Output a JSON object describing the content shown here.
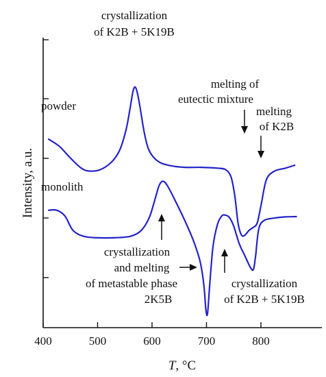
{
  "chart_data": {
    "type": "line",
    "xlabel_var": "T",
    "xlabel_unit": ", °C",
    "ylabel": "Intensity, a.u.",
    "xlim": [
      400,
      880
    ],
    "xticks": [
      "400",
      "500",
      "600",
      "700",
      "800"
    ],
    "grid": false,
    "colors": {
      "series": "#2222cc",
      "axis": "#111111"
    },
    "series": [
      {
        "name": "powder",
        "points": [
          [
            410,
            0.65
          ],
          [
            430,
            0.625
          ],
          [
            450,
            0.585
          ],
          [
            470,
            0.55
          ],
          [
            485,
            0.54
          ],
          [
            505,
            0.545
          ],
          [
            525,
            0.57
          ],
          [
            540,
            0.61
          ],
          [
            552,
            0.68
          ],
          [
            560,
            0.76
          ],
          [
            565,
            0.815
          ],
          [
            569,
            0.83
          ],
          [
            573,
            0.81
          ],
          [
            578,
            0.76
          ],
          [
            586,
            0.67
          ],
          [
            595,
            0.61
          ],
          [
            610,
            0.575
          ],
          [
            630,
            0.56
          ],
          [
            660,
            0.553
          ],
          [
            690,
            0.553
          ],
          [
            720,
            0.55
          ],
          [
            735,
            0.545
          ],
          [
            745,
            0.52
          ],
          [
            752,
            0.455
          ],
          [
            758,
            0.36
          ],
          [
            764,
            0.32
          ],
          [
            770,
            0.318
          ],
          [
            778,
            0.335
          ],
          [
            785,
            0.345
          ],
          [
            793,
            0.36
          ],
          [
            800,
            0.42
          ],
          [
            810,
            0.51
          ],
          [
            825,
            0.54
          ],
          [
            845,
            0.55
          ],
          [
            862,
            0.56
          ]
        ]
      },
      {
        "name": "monolith",
        "points": [
          [
            410,
            0.405
          ],
          [
            425,
            0.405
          ],
          [
            440,
            0.385
          ],
          [
            455,
            0.335
          ],
          [
            475,
            0.315
          ],
          [
            500,
            0.31
          ],
          [
            530,
            0.31
          ],
          [
            560,
            0.315
          ],
          [
            580,
            0.335
          ],
          [
            595,
            0.38
          ],
          [
            605,
            0.44
          ],
          [
            613,
            0.49
          ],
          [
            620,
            0.505
          ],
          [
            628,
            0.49
          ],
          [
            642,
            0.44
          ],
          [
            660,
            0.37
          ],
          [
            676,
            0.3
          ],
          [
            688,
            0.23
          ],
          [
            695,
            0.15
          ],
          [
            699,
            0.06
          ],
          [
            702,
            0.05
          ],
          [
            706,
            0.15
          ],
          [
            712,
            0.28
          ],
          [
            720,
            0.355
          ],
          [
            728,
            0.385
          ],
          [
            735,
            0.388
          ],
          [
            742,
            0.38
          ],
          [
            750,
            0.35
          ],
          [
            760,
            0.29
          ],
          [
            770,
            0.25
          ],
          [
            780,
            0.21
          ],
          [
            786,
            0.2
          ],
          [
            790,
            0.245
          ],
          [
            796,
            0.34
          ],
          [
            806,
            0.37
          ],
          [
            825,
            0.378
          ],
          [
            845,
            0.382
          ],
          [
            865,
            0.383
          ]
        ]
      }
    ],
    "annotations": [
      {
        "id": "a1",
        "lines": [
          "crystallization",
          "of K2B + 5K19B"
        ]
      },
      {
        "id": "a2",
        "lines": [
          "melting of",
          "eutectic mixture"
        ]
      },
      {
        "id": "a3",
        "lines": [
          "melting",
          "of K2B"
        ]
      },
      {
        "id": "a4",
        "lines": [
          "crystallization",
          "and melting",
          "of metastable phase",
          "2K5B"
        ]
      },
      {
        "id": "a5",
        "lines": [
          "crystallization",
          "of K2B + 5K19B"
        ]
      }
    ]
  }
}
